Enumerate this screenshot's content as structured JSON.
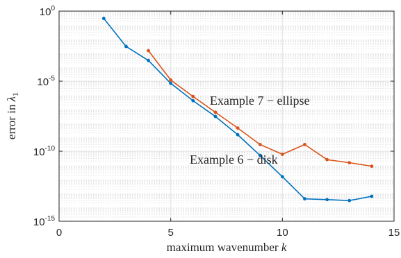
{
  "chart_data": {
    "type": "line",
    "title": "",
    "xlabel": "maximum wavenumber",
    "xlabel_var": "k",
    "ylabel": "error in",
    "ylabel_var": "λ",
    "ylabel_sub": "1",
    "xlim": [
      0,
      15
    ],
    "ylim": [
      1e-15,
      1
    ],
    "yscale": "log",
    "grid": true,
    "minor_grid_y": true,
    "xticks": [
      0,
      5,
      10,
      15
    ],
    "yticks": [
      {
        "value": 1,
        "base": "10",
        "exp": "0"
      },
      {
        "value": 1e-05,
        "base": "10",
        "exp": "-5"
      },
      {
        "value": 1e-10,
        "base": "10",
        "exp": "-10"
      },
      {
        "value": 1e-15,
        "base": "10",
        "exp": "-15"
      }
    ],
    "series": [
      {
        "color": "#0072BD",
        "x": [
          2,
          3,
          4,
          5,
          6,
          7,
          8,
          9,
          10,
          11,
          12,
          13,
          14
        ],
        "y": [
          0.3,
          0.003,
          0.0003,
          7e-06,
          4e-07,
          3e-08,
          1.5e-09,
          5e-11,
          1.5e-12,
          4e-14,
          3.5e-14,
          3e-14,
          6e-14
        ]
      },
      {
        "color": "#D95319",
        "x": [
          4,
          5,
          6,
          7,
          8,
          9,
          10,
          11,
          12,
          13,
          14
        ],
        "y": [
          0.0015,
          1.2e-05,
          8e-07,
          6e-08,
          4.5e-09,
          3e-10,
          6e-11,
          3e-10,
          2.5e-11,
          1.5e-11,
          8.5e-12
        ]
      }
    ],
    "annotations": [
      {
        "text": "Example 7 − ellipse",
        "x": 6.75,
        "y": 4e-07
      },
      {
        "text": "Example 6 − disk",
        "x": 5.85,
        "y": 2.5e-11
      }
    ]
  }
}
